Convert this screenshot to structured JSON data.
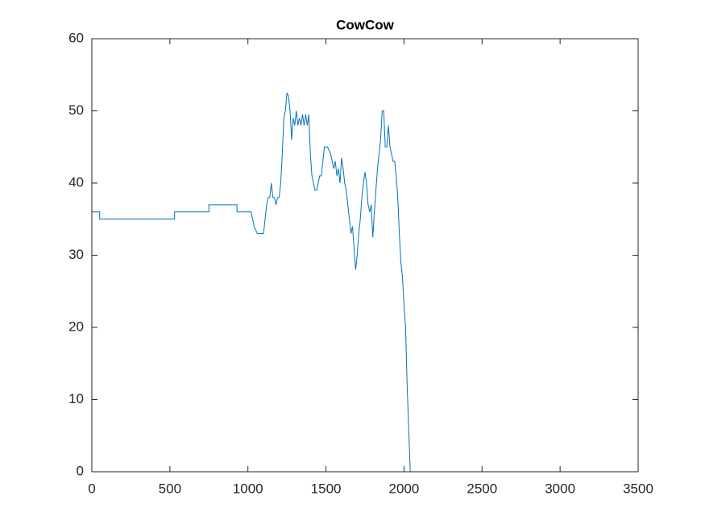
{
  "chart_data": {
    "type": "line",
    "title": "CowCow",
    "x": [
      0,
      50,
      50,
      530,
      530,
      750,
      750,
      930,
      930,
      1020,
      1030,
      1040,
      1060,
      1070,
      1100,
      1110,
      1120,
      1130,
      1140,
      1150,
      1160,
      1170,
      1180,
      1190,
      1200,
      1210,
      1220,
      1230,
      1240,
      1250,
      1260,
      1270,
      1280,
      1290,
      1300,
      1310,
      1320,
      1330,
      1340,
      1350,
      1360,
      1370,
      1380,
      1390,
      1400,
      1410,
      1420,
      1430,
      1440,
      1460,
      1470,
      1480,
      1490,
      1500,
      1510,
      1530,
      1540,
      1550,
      1560,
      1570,
      1580,
      1590,
      1600,
      1610,
      1620,
      1630,
      1640,
      1650,
      1660,
      1670,
      1680,
      1690,
      1700,
      1710,
      1720,
      1730,
      1740,
      1750,
      1760,
      1770,
      1780,
      1790,
      1800,
      1810,
      1820,
      1830,
      1840,
      1850,
      1860,
      1870,
      1880,
      1890,
      1900,
      1910,
      1920,
      1930,
      1940,
      1950,
      1960,
      1970,
      1980,
      1990,
      2000,
      2010,
      2020,
      2030,
      2040,
      3070
    ],
    "values": [
      36,
      36,
      35,
      35,
      36,
      36,
      37,
      37,
      36,
      36,
      35,
      34,
      33,
      33,
      33,
      35,
      37,
      38,
      38,
      40,
      38,
      38,
      37,
      38,
      38,
      40,
      44,
      49,
      50,
      52.5,
      52,
      50,
      46,
      49,
      48,
      50,
      48,
      49,
      48,
      49.5,
      48,
      49.5,
      48,
      49.5,
      44,
      41,
      40,
      39,
      39,
      41,
      41,
      43,
      45,
      45,
      45,
      44,
      43,
      42,
      43,
      41,
      42,
      40,
      43.5,
      42,
      40,
      39,
      37,
      35,
      33,
      34,
      31,
      28,
      30,
      33,
      35,
      38,
      40,
      41.5,
      40,
      37,
      36,
      37,
      32.5,
      36,
      39,
      42,
      44,
      46,
      50,
      50,
      45,
      45,
      48,
      45,
      44,
      43,
      43,
      41,
      38,
      33,
      29,
      27,
      23,
      20,
      12,
      6,
      0,
      0
    ],
    "color": "#0072bd",
    "xlim": [
      0,
      3500
    ],
    "xticks": [
      0,
      500,
      1000,
      1500,
      2000,
      2500,
      3000,
      3500
    ],
    "ylim": [
      0,
      60
    ],
    "yticks": [
      0,
      10,
      20,
      30,
      40,
      50,
      60
    ]
  }
}
